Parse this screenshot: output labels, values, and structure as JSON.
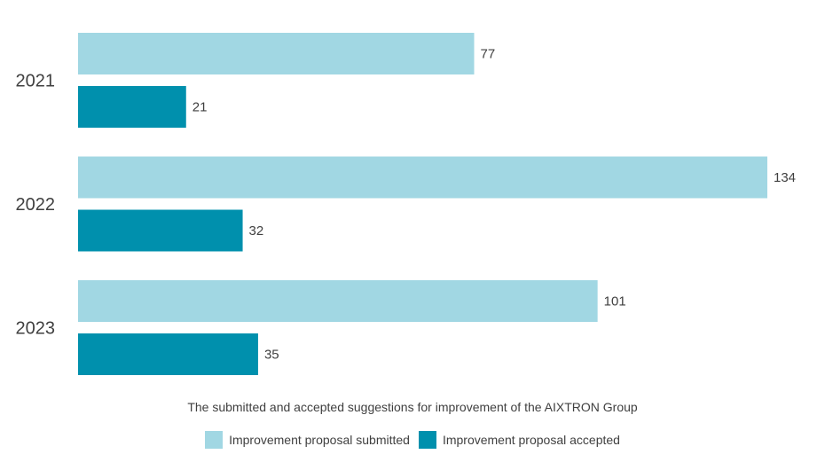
{
  "chart_data": {
    "type": "bar",
    "orientation": "horizontal",
    "categories": [
      "2021",
      "2022",
      "2023"
    ],
    "series": [
      {
        "name": "Improvement proposal submitted",
        "values": [
          77,
          134,
          101
        ],
        "color": "#a1d7e3"
      },
      {
        "name": "Improvement proposal accepted",
        "values": [
          21,
          32,
          35
        ],
        "color": "#0090ad"
      }
    ],
    "caption": "The submitted and accepted suggestions for improvement of the AIXTRON Group",
    "xlim": [
      0,
      134
    ],
    "grid": false,
    "legend_position": "bottom"
  }
}
